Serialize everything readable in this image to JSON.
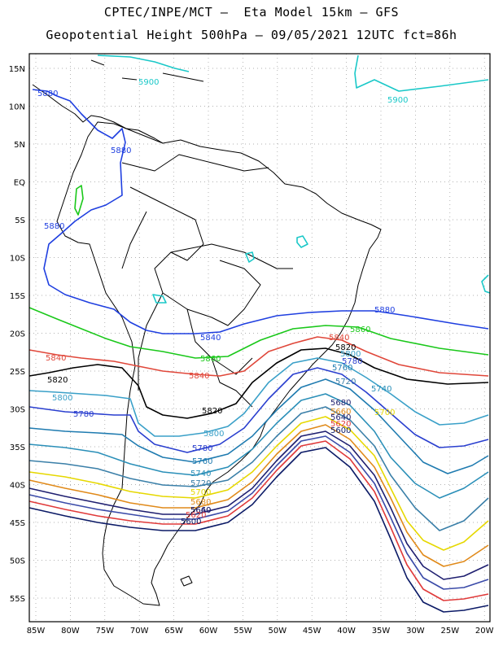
{
  "header": {
    "line1": "CPTEC/INPE/MCT –  Eta Model 15km – GFS",
    "line2": "Geopotential Height 500hPa – 09/05/2021 12UTC fct=86h"
  },
  "axes": {
    "lat_labels": [
      "15N",
      "10N",
      "5N",
      "EQ",
      "5S",
      "10S",
      "15S",
      "20S",
      "25S",
      "30S",
      "35S",
      "40S",
      "45S",
      "50S",
      "55S"
    ],
    "lon_labels": [
      "85W",
      "80W",
      "75W",
      "70W",
      "65W",
      "60W",
      "55W",
      "50W",
      "45W",
      "40W",
      "35W",
      "30W",
      "25W",
      "20W"
    ]
  },
  "contour_levels": [
    {
      "value": "5600",
      "color": "#0b1a66"
    },
    {
      "value": "5620",
      "color": "#e03a3a"
    },
    {
      "value": "5640",
      "color": "#1f1f70"
    },
    {
      "value": "5660",
      "color": "#3a4aa8"
    },
    {
      "value": "5680",
      "color": "#e08a1a"
    },
    {
      "value": "5700",
      "color": "#e6d800"
    },
    {
      "value": "5720",
      "color": "#3a7fa8"
    },
    {
      "value": "5740",
      "color": "#2a8fb8"
    },
    {
      "value": "5760",
      "color": "#1f7bb0"
    },
    {
      "value": "5780",
      "color": "#2a3fcf"
    },
    {
      "value": "5800",
      "color": "#3aa0c8"
    },
    {
      "value": "5820",
      "color": "#000000"
    },
    {
      "value": "5840",
      "color": "#e0473a"
    },
    {
      "value": "5860",
      "color": "#1ac81a"
    },
    {
      "value": "5880",
      "color": "#1f3fe0"
    },
    {
      "value": "5900",
      "color": "#1ac8c8"
    }
  ],
  "contour_labels": [
    {
      "text": "5900",
      "color": "#1ac8c8"
    },
    {
      "text": "5900",
      "color": "#1ac8c8"
    },
    {
      "text": "5880",
      "color": "#1f3fe0"
    },
    {
      "text": "5880",
      "color": "#1f3fe0"
    },
    {
      "text": "5880",
      "color": "#1f3fe0"
    },
    {
      "text": "5880",
      "color": "#1f3fe0"
    },
    {
      "text": "5860",
      "color": "#1ac81a"
    },
    {
      "text": "5860",
      "color": "#1ac81a"
    },
    {
      "text": "5840",
      "color": "#1f3fe0"
    },
    {
      "text": "5840",
      "color": "#e0473a"
    },
    {
      "text": "5840",
      "color": "#e0473a"
    },
    {
      "text": "5840",
      "color": "#e0473a"
    },
    {
      "text": "5820",
      "color": "#000000"
    },
    {
      "text": "5820",
      "color": "#000000"
    },
    {
      "text": "5820",
      "color": "#000000"
    },
    {
      "text": "5800",
      "color": "#3aa0c8"
    },
    {
      "text": "5800",
      "color": "#3aa0c8"
    },
    {
      "text": "5800",
      "color": "#3aa0c8"
    },
    {
      "text": "5780",
      "color": "#2a3fcf"
    },
    {
      "text": "5780",
      "color": "#2a3fcf"
    },
    {
      "text": "5780",
      "color": "#2a3fcf"
    },
    {
      "text": "5760",
      "color": "#1f7bb0"
    },
    {
      "text": "5760",
      "color": "#1f7bb0"
    },
    {
      "text": "5740",
      "color": "#2a8fb8"
    },
    {
      "text": "5740",
      "color": "#2a8fb8"
    },
    {
      "text": "5720",
      "color": "#3a7fa8"
    },
    {
      "text": "5720",
      "color": "#3a7fa8"
    },
    {
      "text": "5700",
      "color": "#e6d800"
    },
    {
      "text": "5700",
      "color": "#e6d800"
    },
    {
      "text": "5680",
      "color": "#1f1f70"
    },
    {
      "text": "5680",
      "color": "#e08a1a"
    },
    {
      "text": "5660",
      "color": "#e08a1a"
    },
    {
      "text": "5660",
      "color": "#1f1f70"
    },
    {
      "text": "5640",
      "color": "#1f1f70"
    },
    {
      "text": "5640",
      "color": "#1f1f70"
    },
    {
      "text": "5620",
      "color": "#e03a3a"
    },
    {
      "text": "5620",
      "color": "#e03a3a"
    },
    {
      "text": "5600",
      "color": "#0b1a66"
    },
    {
      "text": "5600",
      "color": "#0b1a66"
    }
  ]
}
